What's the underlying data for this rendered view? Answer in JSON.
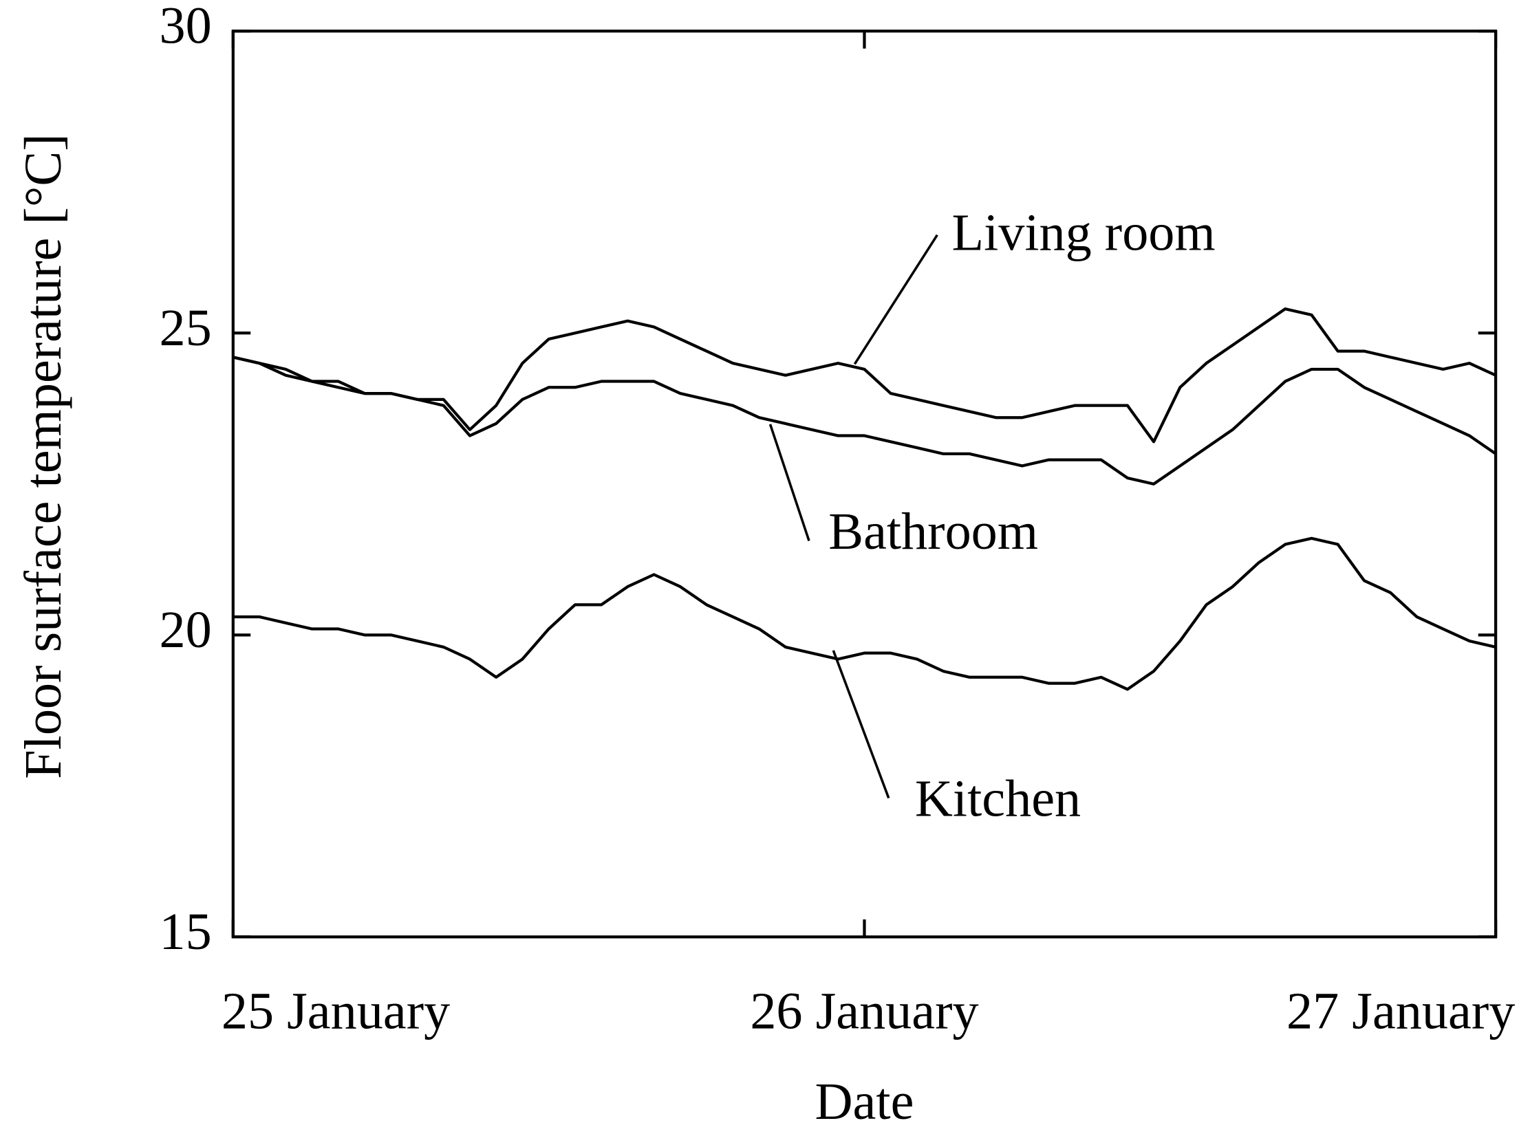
{
  "chart_data": {
    "type": "line",
    "y_label": "Floor surface temperature [°C]",
    "x_label": "Date",
    "xlim": [
      0,
      48
    ],
    "xticks": [
      {
        "value": 0,
        "label": "25 January"
      },
      {
        "value": 24,
        "label": "26 January"
      },
      {
        "value": 48,
        "label": "27 January"
      }
    ],
    "ylim": [
      15,
      30
    ],
    "yticks": [
      15,
      20,
      25,
      30
    ],
    "x": [
      0,
      1,
      2,
      3,
      4,
      5,
      6,
      7,
      8,
      9,
      10,
      11,
      12,
      13,
      14,
      15,
      16,
      17,
      18,
      19,
      20,
      21,
      22,
      23,
      24,
      25,
      26,
      27,
      28,
      29,
      30,
      31,
      32,
      33,
      34,
      35,
      36,
      37,
      38,
      39,
      40,
      41,
      42,
      43,
      44,
      45,
      46,
      47,
      48
    ],
    "series": [
      {
        "name": "Living room",
        "color": "#000000",
        "values": [
          24.6,
          24.5,
          24.4,
          24.2,
          24.2,
          24.0,
          24.0,
          23.9,
          23.9,
          23.4,
          23.8,
          24.5,
          24.9,
          25.0,
          25.1,
          25.2,
          25.1,
          24.9,
          24.7,
          24.5,
          24.4,
          24.3,
          24.4,
          24.5,
          24.4,
          24.0,
          23.9,
          23.8,
          23.7,
          23.6,
          23.6,
          23.7,
          23.8,
          23.8,
          23.8,
          23.2,
          24.1,
          24.5,
          24.8,
          25.1,
          25.4,
          25.3,
          24.7,
          24.7,
          24.6,
          24.5,
          24.4,
          24.5,
          24.3
        ]
      },
      {
        "name": "Bathroom",
        "color": "#000000",
        "values": [
          24.6,
          24.5,
          24.3,
          24.2,
          24.1,
          24.0,
          24.0,
          23.9,
          23.8,
          23.3,
          23.5,
          23.9,
          24.1,
          24.1,
          24.2,
          24.2,
          24.2,
          24.0,
          23.9,
          23.8,
          23.6,
          23.5,
          23.4,
          23.3,
          23.3,
          23.2,
          23.1,
          23.0,
          23.0,
          22.9,
          22.8,
          22.9,
          22.9,
          22.9,
          22.6,
          22.5,
          22.8,
          23.1,
          23.4,
          23.8,
          24.2,
          24.4,
          24.4,
          24.1,
          23.9,
          23.7,
          23.5,
          23.3,
          23.0
        ]
      },
      {
        "name": "Kitchen",
        "color": "#000000",
        "values": [
          20.3,
          20.3,
          20.2,
          20.1,
          20.1,
          20.0,
          20.0,
          19.9,
          19.8,
          19.6,
          19.3,
          19.6,
          20.1,
          20.5,
          20.5,
          20.8,
          21.0,
          20.8,
          20.5,
          20.3,
          20.1,
          19.8,
          19.7,
          19.6,
          19.7,
          19.7,
          19.6,
          19.4,
          19.3,
          19.3,
          19.3,
          19.2,
          19.2,
          19.3,
          19.1,
          19.4,
          19.9,
          20.5,
          20.8,
          21.2,
          21.5,
          21.6,
          21.5,
          20.9,
          20.7,
          20.3,
          20.1,
          19.9,
          19.8
        ]
      }
    ]
  }
}
